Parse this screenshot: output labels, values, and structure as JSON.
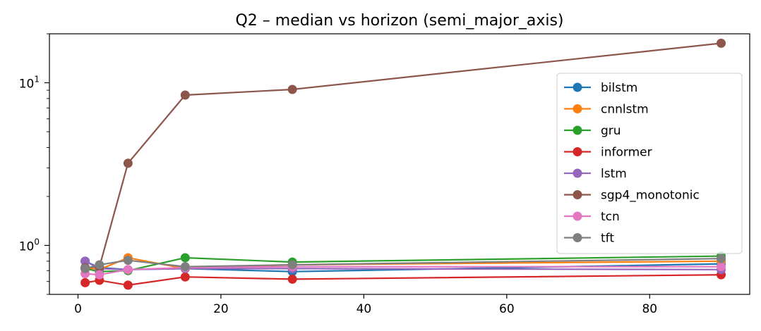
{
  "chart_data": {
    "type": "line",
    "title": "Q2 – median vs horizon (semi_major_axis)",
    "xlabel": "",
    "ylabel": "",
    "x": [
      1,
      3,
      7,
      15,
      30,
      90
    ],
    "xlim": [
      -4,
      94
    ],
    "ylim": [
      0.5,
      20
    ],
    "yscale": "log",
    "xticks": [
      0,
      20,
      40,
      60,
      80
    ],
    "yticks": [
      {
        "value": 1,
        "base": "10",
        "exp": "0"
      },
      {
        "value": 10,
        "base": "10",
        "exp": "1"
      }
    ],
    "grid": false,
    "legend_position": "upper-right",
    "series": [
      {
        "name": "bilstm",
        "color": "#1f77b4",
        "values": [
          0.8,
          0.73,
          0.71,
          0.72,
          0.69,
          0.77
        ]
      },
      {
        "name": "cnnlstm",
        "color": "#ff7f0e",
        "values": [
          0.73,
          0.71,
          0.84,
          0.72,
          0.76,
          0.8
        ]
      },
      {
        "name": "gru",
        "color": "#2ca02c",
        "values": [
          0.72,
          0.69,
          0.7,
          0.84,
          0.79,
          0.86
        ]
      },
      {
        "name": "informer",
        "color": "#d62728",
        "values": [
          0.59,
          0.61,
          0.57,
          0.64,
          0.62,
          0.66
        ]
      },
      {
        "name": "lstm",
        "color": "#9467bd",
        "values": [
          0.8,
          0.72,
          0.71,
          0.72,
          0.72,
          0.71
        ]
      },
      {
        "name": "sgp4_monotonic",
        "color": "#8c564b",
        "values": [
          0.73,
          0.74,
          3.2,
          8.4,
          9.1,
          17.5
        ]
      },
      {
        "name": "tcn",
        "color": "#e377c2",
        "values": [
          0.67,
          0.66,
          0.71,
          0.73,
          0.74,
          0.74
        ]
      },
      {
        "name": "tft",
        "color": "#7f7f7f",
        "values": [
          0.72,
          0.76,
          0.81,
          0.74,
          0.76,
          0.83
        ]
      }
    ]
  }
}
